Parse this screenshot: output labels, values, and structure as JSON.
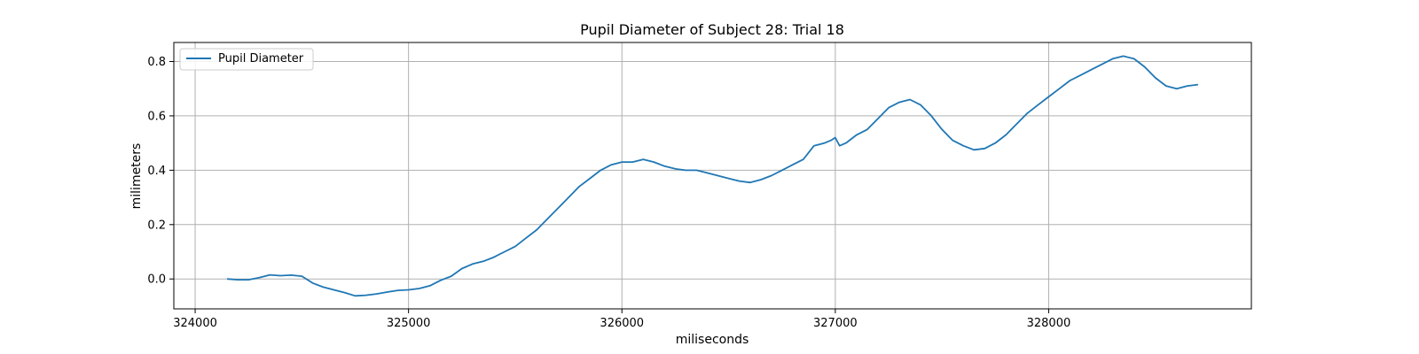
{
  "chart_data": {
    "type": "line",
    "title": "Pupil Diameter of Subject 28: Trial 18",
    "xlabel": "miliseconds",
    "ylabel": "milimeters",
    "xlim": [
      323900,
      328950
    ],
    "ylim": [
      -0.11,
      0.87
    ],
    "x_ticks": [
      324000,
      325000,
      326000,
      327000,
      328000
    ],
    "y_ticks": [
      0.0,
      0.2,
      0.4,
      0.6,
      0.8
    ],
    "x_tick_labels": [
      "324000",
      "325000",
      "326000",
      "327000",
      "328000"
    ],
    "y_tick_labels": [
      "0.0",
      "0.2",
      "0.4",
      "0.6",
      "0.8"
    ],
    "grid": true,
    "legend": {
      "placement": "top-left",
      "entries": [
        "Pupil Diameter"
      ]
    },
    "series": [
      {
        "name": "Pupil Diameter",
        "color": "#1f77b4",
        "x": [
          324150,
          324200,
          324250,
          324300,
          324350,
          324400,
          324450,
          324500,
          324550,
          324600,
          324650,
          324700,
          324750,
          324800,
          324850,
          324900,
          324950,
          325000,
          325050,
          325100,
          325150,
          325200,
          325250,
          325300,
          325350,
          325400,
          325450,
          325500,
          325550,
          325600,
          325650,
          325700,
          325750,
          325800,
          325850,
          325900,
          325950,
          326000,
          326050,
          326100,
          326150,
          326200,
          326250,
          326300,
          326350,
          326400,
          326450,
          326500,
          326550,
          326600,
          326650,
          326700,
          326750,
          326800,
          326850,
          326900,
          326950,
          326980,
          327000,
          327020,
          327050,
          327100,
          327150,
          327200,
          327250,
          327300,
          327350,
          327400,
          327450,
          327500,
          327550,
          327600,
          327650,
          327700,
          327750,
          327800,
          327850,
          327900,
          327950,
          328000,
          328050,
          328100,
          328150,
          328200,
          328250,
          328300,
          328350,
          328400,
          328450,
          328500,
          328550,
          328600,
          328650,
          328700
        ],
        "y": [
          0.0,
          -0.003,
          -0.003,
          0.005,
          0.015,
          0.012,
          0.014,
          0.01,
          -0.015,
          -0.03,
          -0.04,
          -0.05,
          -0.062,
          -0.06,
          -0.055,
          -0.048,
          -0.042,
          -0.04,
          -0.035,
          -0.025,
          -0.005,
          0.01,
          0.038,
          0.055,
          0.065,
          0.08,
          0.1,
          0.12,
          0.15,
          0.18,
          0.22,
          0.26,
          0.3,
          0.34,
          0.37,
          0.4,
          0.42,
          0.43,
          0.43,
          0.44,
          0.43,
          0.415,
          0.405,
          0.4,
          0.4,
          0.39,
          0.38,
          0.37,
          0.36,
          0.355,
          0.365,
          0.38,
          0.4,
          0.42,
          0.44,
          0.49,
          0.5,
          0.51,
          0.52,
          0.49,
          0.5,
          0.53,
          0.55,
          0.59,
          0.63,
          0.65,
          0.66,
          0.64,
          0.6,
          0.55,
          0.51,
          0.49,
          0.475,
          0.48,
          0.5,
          0.53,
          0.57,
          0.61,
          0.64,
          0.67,
          0.7,
          0.73,
          0.75,
          0.77,
          0.79,
          0.81,
          0.82,
          0.81,
          0.78,
          0.74,
          0.71,
          0.7,
          0.71,
          0.715
        ]
      }
    ]
  }
}
